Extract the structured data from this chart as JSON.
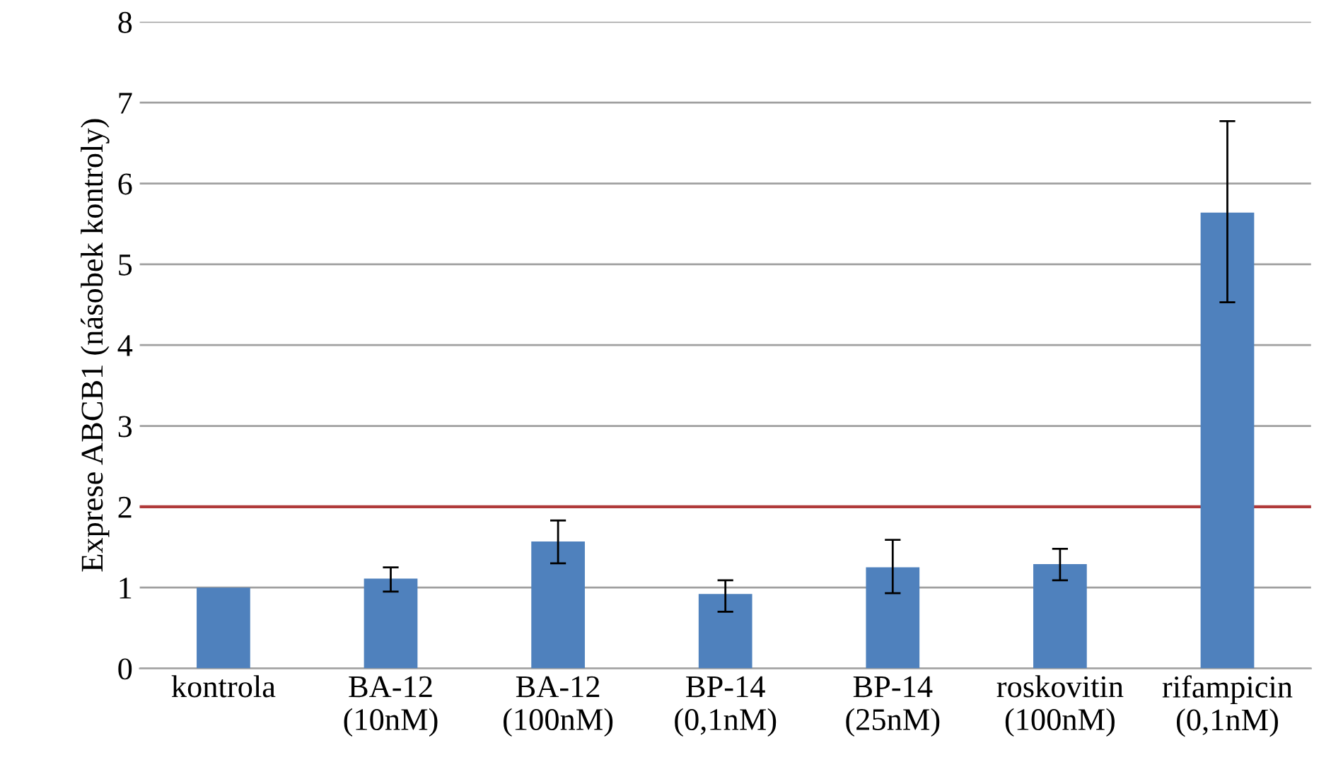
{
  "chart_data": {
    "type": "bar",
    "ylabel": "Exprese ABCB1 (násobek kontroly)",
    "categories": [
      "kontrola",
      "BA-12\n(10nM)",
      "BA-12\n(100nM)",
      "BP-14\n(0,1nM)",
      "BP-14\n(25nM)",
      "roskovitin\n(100nM)",
      "rifampicin\n(0,1nM)"
    ],
    "values": [
      1.0,
      1.11,
      1.57,
      0.92,
      1.25,
      1.29,
      5.64
    ],
    "errors": [
      null,
      [
        0.95,
        1.25
      ],
      [
        1.3,
        1.83
      ],
      [
        0.7,
        1.09
      ],
      [
        0.93,
        1.59
      ],
      [
        1.09,
        1.48
      ],
      [
        4.53,
        6.77
      ]
    ],
    "color": "#4f81bd",
    "ylim": [
      0,
      8
    ],
    "yticks": [
      0,
      1,
      2,
      3,
      4,
      5,
      6,
      7,
      8
    ],
    "grid": "y",
    "ref_lines": [
      {
        "axis": "y",
        "value": 2,
        "label": null,
        "color": "#b03a3a"
      }
    ]
  }
}
